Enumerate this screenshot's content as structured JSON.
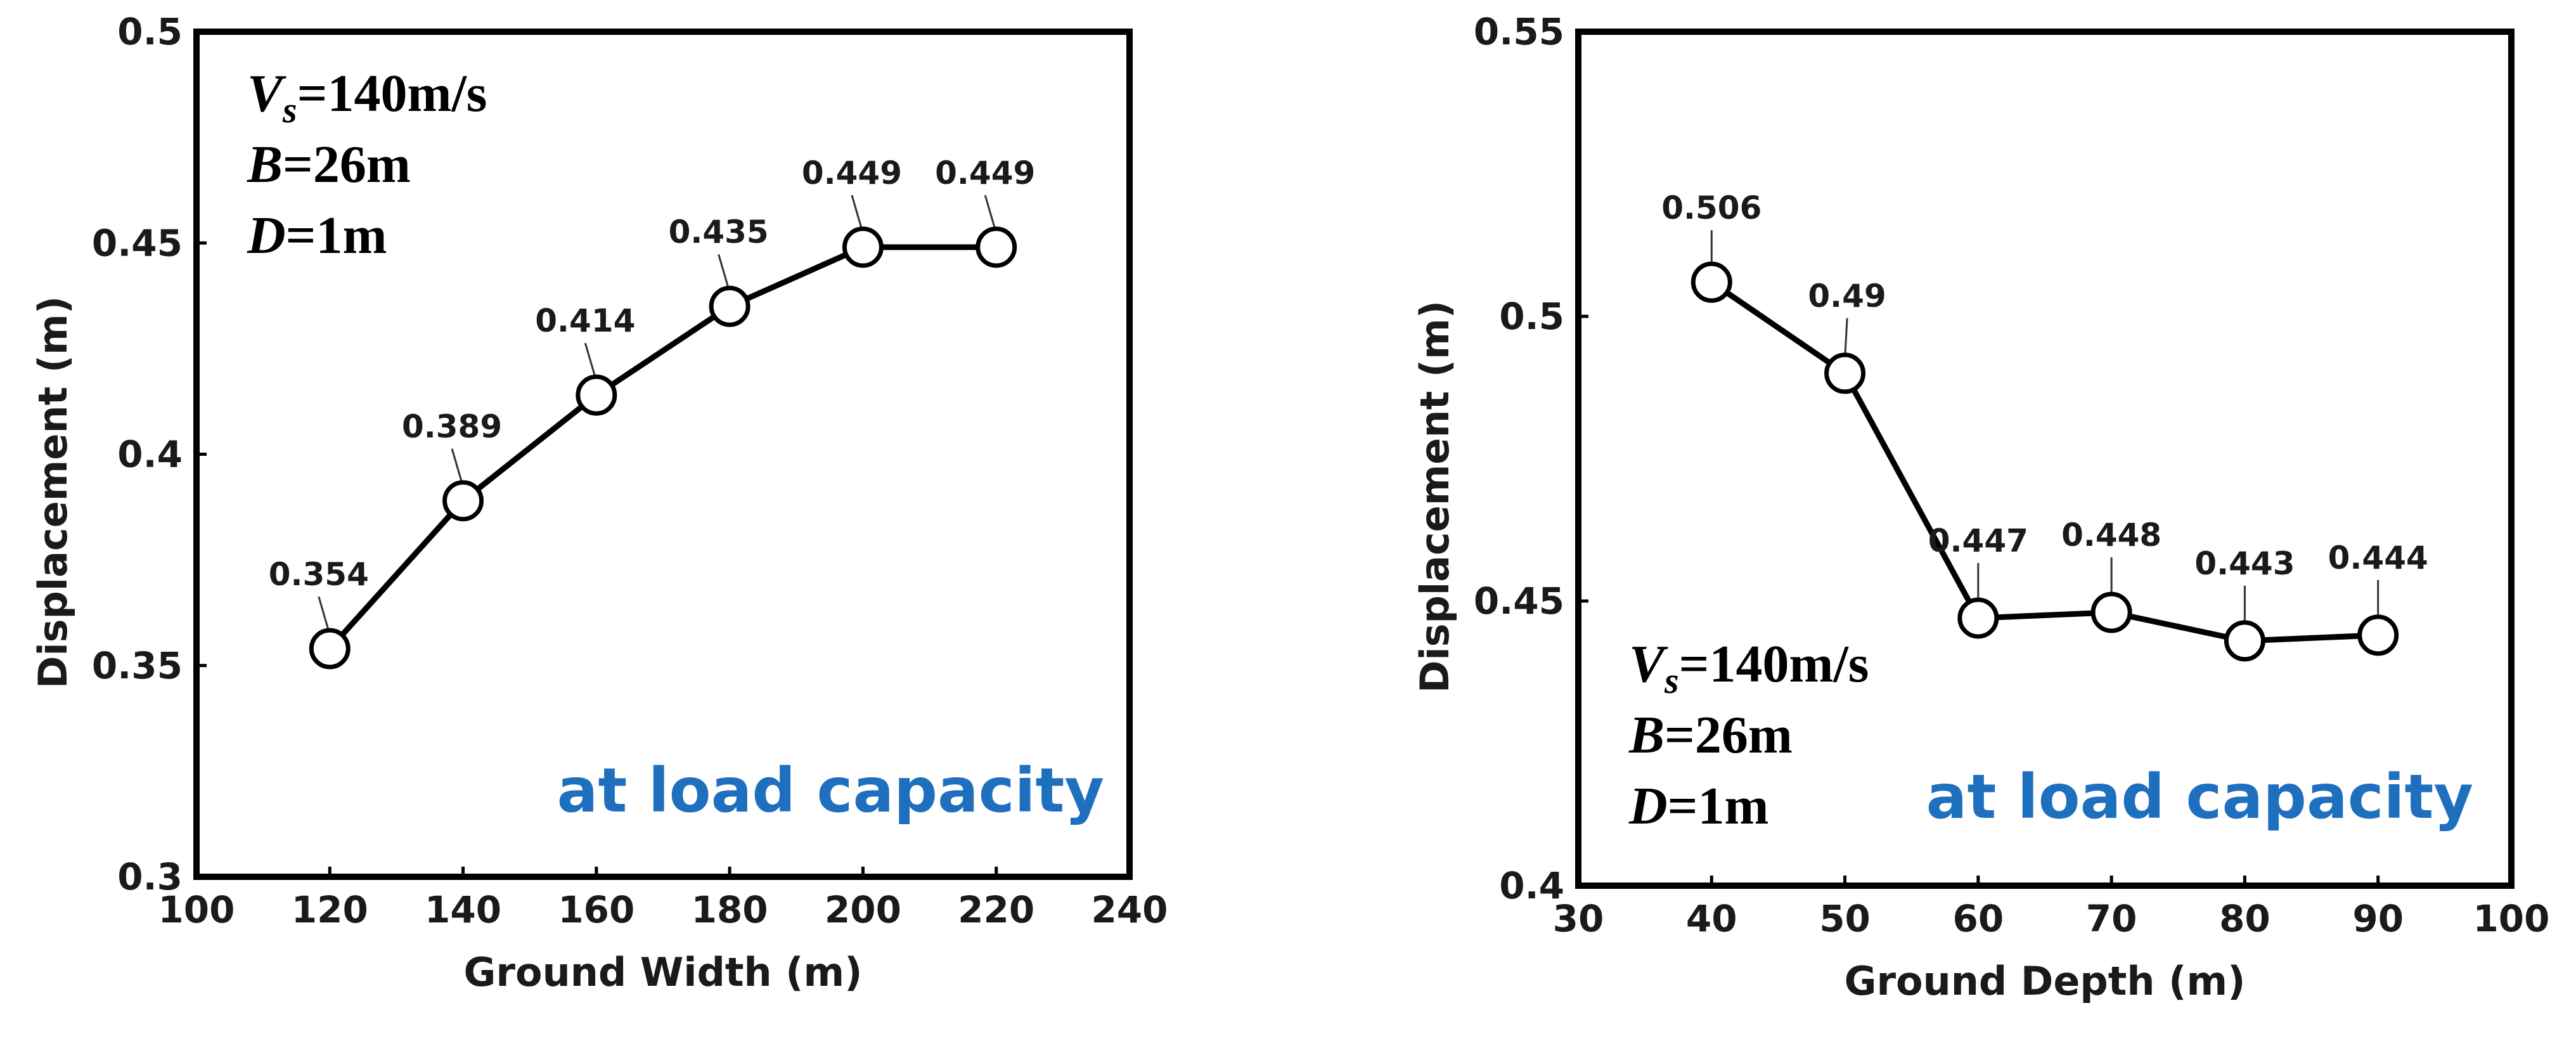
{
  "colors": {
    "line": "#000000",
    "note": "#1f6fbf"
  },
  "chart_data": [
    {
      "type": "line",
      "title": "",
      "xlabel": "Ground Width (m)",
      "ylabel": "Displacement (m)",
      "xlim": [
        100,
        240
      ],
      "ylim": [
        0.3,
        0.5
      ],
      "xticks": [
        100,
        120,
        140,
        160,
        180,
        200,
        220,
        240
      ],
      "yticks": [
        0.3,
        0.35,
        0.4,
        0.45,
        0.5
      ],
      "x": [
        120,
        140,
        160,
        180,
        200,
        220
      ],
      "values": [
        0.354,
        0.389,
        0.414,
        0.435,
        0.449,
        0.449
      ],
      "labels": [
        "0.354",
        "0.389",
        "0.414",
        "0.435",
        "0.449",
        "0.449"
      ],
      "params": [
        {
          "var": "V",
          "sub": "s",
          "rest": "=140m/s"
        },
        {
          "var": "B",
          "sub": "",
          "rest": "=26m"
        },
        {
          "var": "D",
          "sub": "",
          "rest": "=1m"
        }
      ],
      "note": "at load capacity"
    },
    {
      "type": "line",
      "title": "",
      "xlabel": "Ground Depth (m)",
      "ylabel": "Displacement (m)",
      "xlim": [
        30,
        100
      ],
      "ylim": [
        0.4,
        0.55
      ],
      "xticks": [
        30,
        40,
        50,
        60,
        70,
        80,
        90,
        100
      ],
      "yticks": [
        0.4,
        0.45,
        0.5,
        0.55
      ],
      "x": [
        40,
        50,
        60,
        70,
        80,
        90
      ],
      "values": [
        0.506,
        0.49,
        0.447,
        0.448,
        0.443,
        0.444
      ],
      "labels": [
        "0.506",
        "0.49",
        "0.447",
        "0.448",
        "0.443",
        "0.444"
      ],
      "params": [
        {
          "var": "V",
          "sub": "s",
          "rest": "=140m/s"
        },
        {
          "var": "B",
          "sub": "",
          "rest": "=26m"
        },
        {
          "var": "D",
          "sub": "",
          "rest": "=1m"
        }
      ],
      "note": "at load capacity"
    }
  ]
}
